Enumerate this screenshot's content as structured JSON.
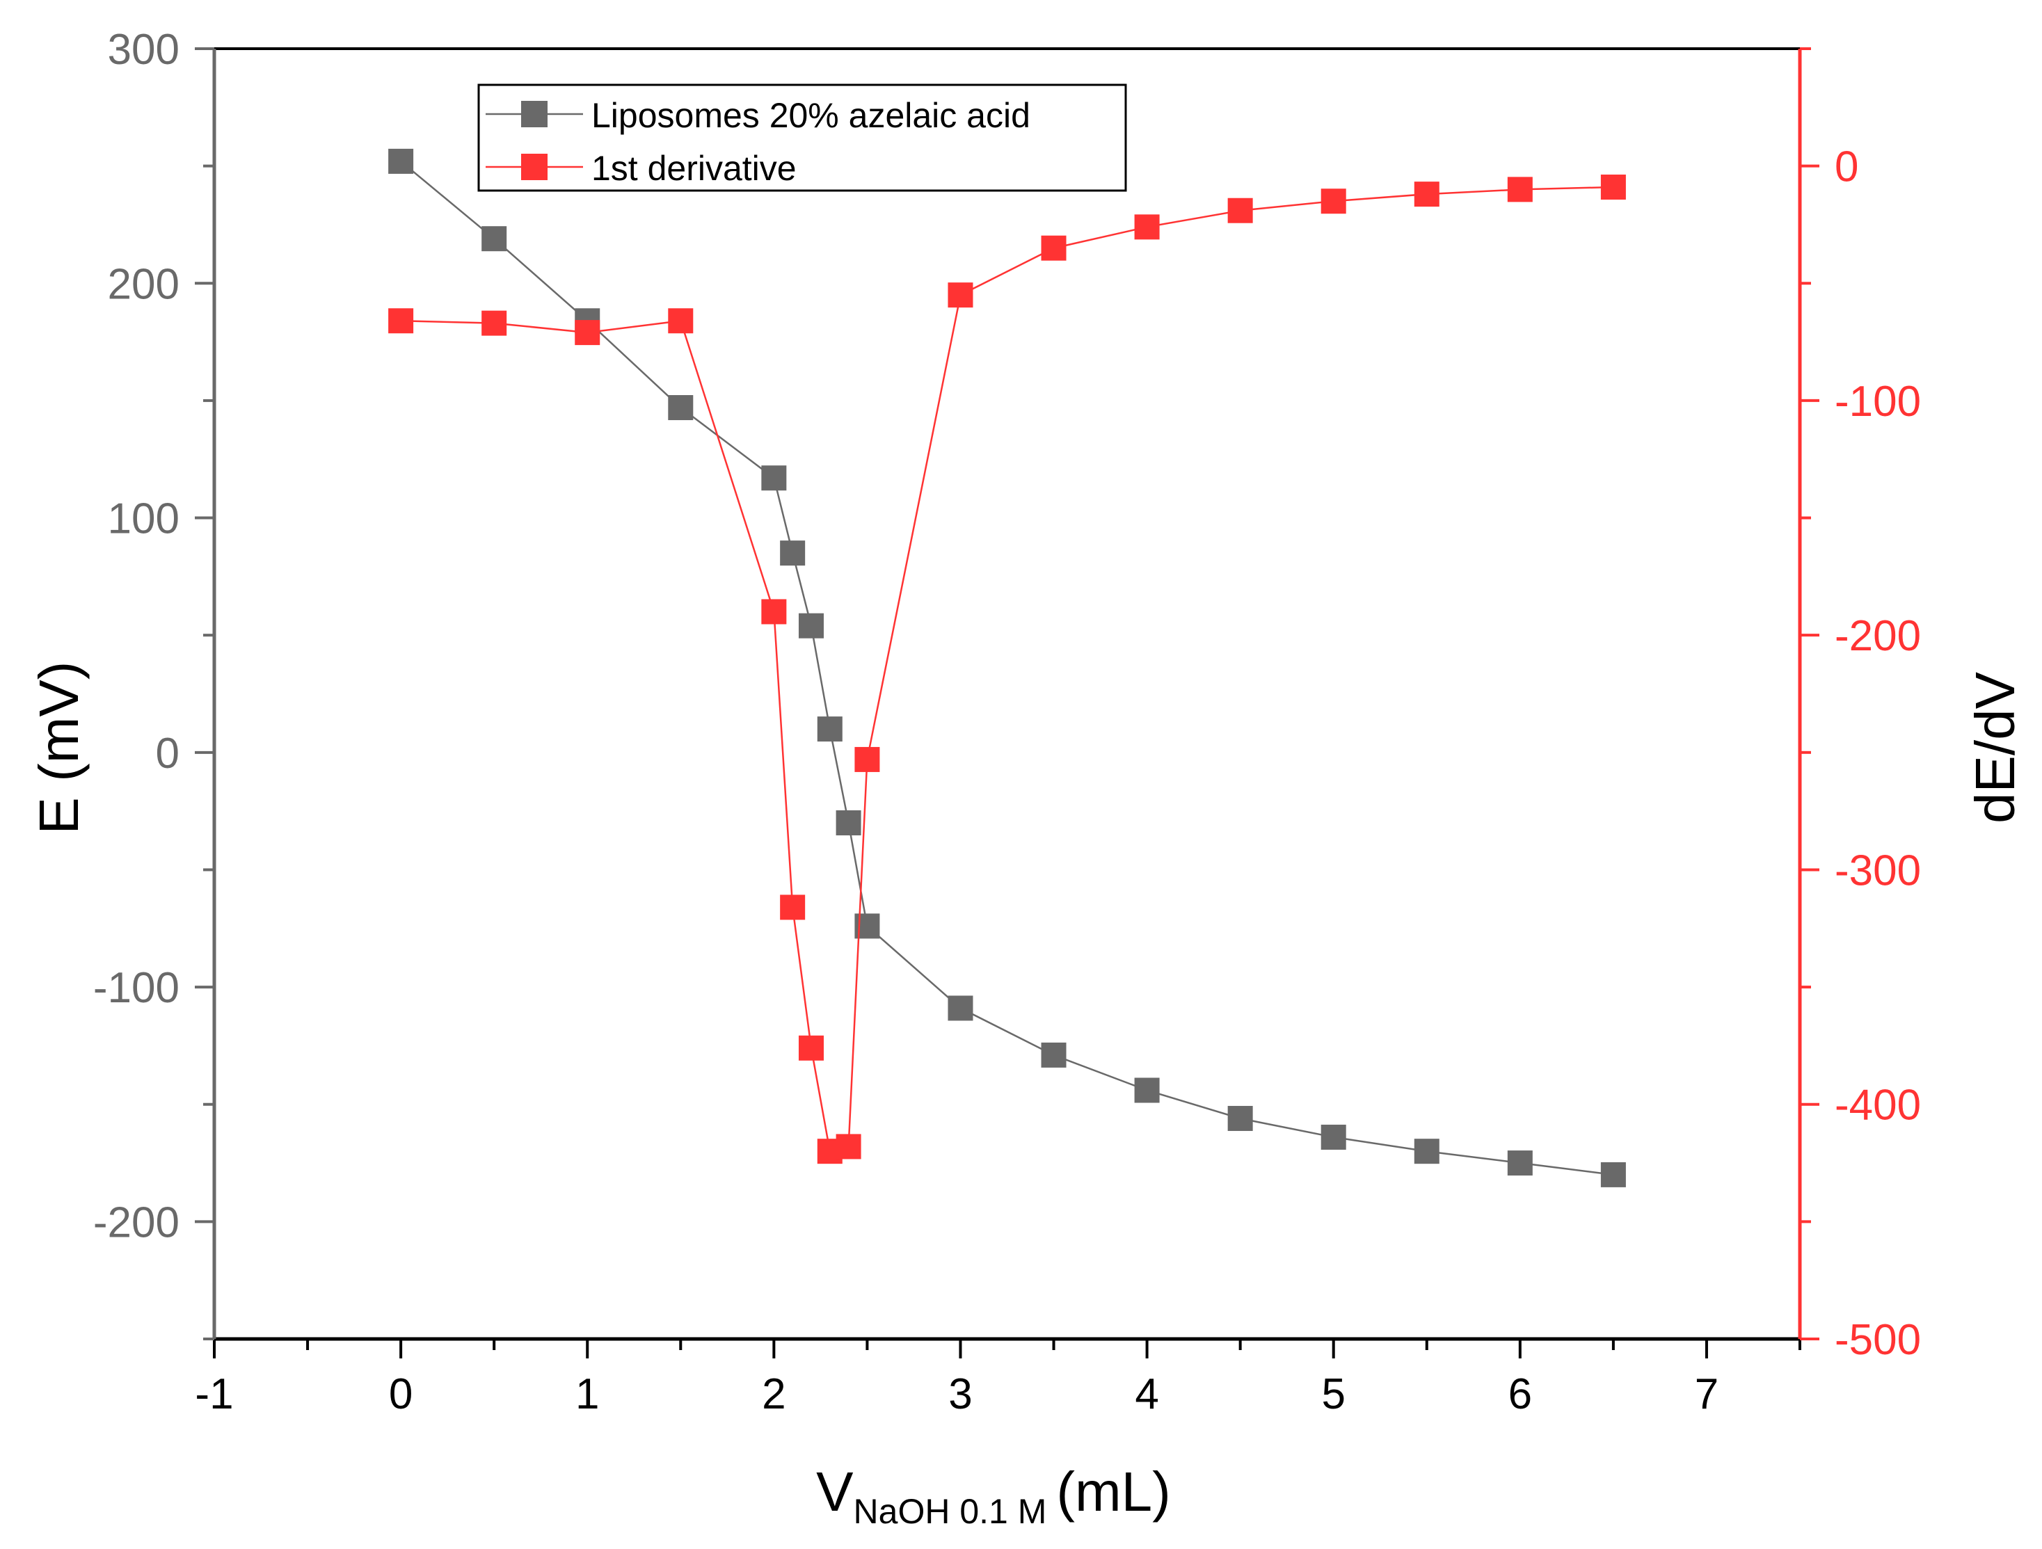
{
  "chart_data": {
    "type": "line",
    "x": [
      0,
      0.5,
      1,
      1.5,
      2,
      2.1,
      2.2,
      2.3,
      2.4,
      2.5,
      3,
      3.5,
      4,
      4.5,
      5,
      5.5,
      6,
      6.5
    ],
    "series": [
      {
        "name": "Liposomes 20% azelaic acid",
        "axis": "left",
        "color": "#696969",
        "marker": "square",
        "values": [
          252,
          219,
          184,
          147,
          117,
          85,
          54,
          10,
          -30,
          -74,
          -109,
          -129,
          -144,
          -156,
          -164,
          -170,
          -175,
          -180
        ]
      },
      {
        "name": "1st derivative",
        "axis": "right",
        "color": "#ff3333",
        "marker": "square",
        "values": [
          -66,
          -67,
          -71,
          -66,
          -190,
          -316,
          -376,
          -420,
          -418,
          -253,
          -55,
          -35,
          -26,
          -19,
          -15,
          -12,
          -10,
          -9
        ]
      }
    ],
    "xlabel_main": "V",
    "xlabel_sub": "NaOH 0.1 M",
    "xlabel_unit": "(mL)",
    "ylabel": "E (mV)",
    "y2label": "dE/dV",
    "xlim": [
      -1,
      7.5
    ],
    "ylim": [
      -250,
      300
    ],
    "y2lim": [
      -500,
      50
    ],
    "xticks": [
      "-1",
      "0",
      "1",
      "2",
      "3",
      "4",
      "5",
      "6",
      "7"
    ],
    "yticks": [
      "-200",
      "-100",
      "0",
      "100",
      "200",
      "300"
    ],
    "y2ticks": [
      "-500",
      "-400",
      "-300",
      "-200",
      "-100",
      "0"
    ],
    "legend_position": "top-left"
  }
}
